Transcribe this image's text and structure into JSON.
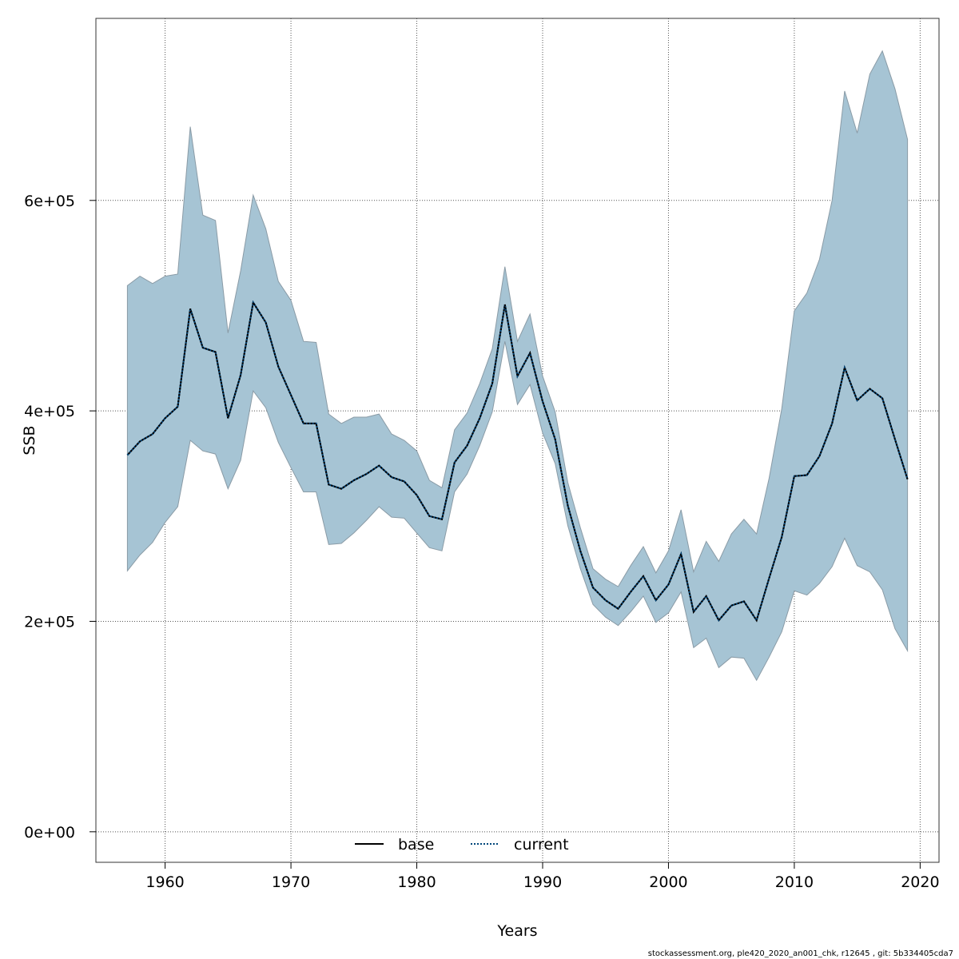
{
  "chart_data": {
    "type": "area",
    "title": "",
    "xlabel": "Years",
    "ylabel": "SSB",
    "xlim": [
      1954.5,
      2021.5
    ],
    "ylim": [
      -29000,
      773000
    ],
    "x_ticks": [
      {
        "value": 1960,
        "label": "1960"
      },
      {
        "value": 1970,
        "label": "1970"
      },
      {
        "value": 1980,
        "label": "1980"
      },
      {
        "value": 1990,
        "label": "1990"
      },
      {
        "value": 2000,
        "label": "2000"
      },
      {
        "value": 2010,
        "label": "2010"
      },
      {
        "value": 2020,
        "label": "2020"
      }
    ],
    "y_ticks": [
      {
        "value": 0,
        "label": "0e+00"
      },
      {
        "value": 200000,
        "label": "2e+05"
      },
      {
        "value": 400000,
        "label": "4e+05"
      },
      {
        "value": 600000,
        "label": "6e+05"
      }
    ],
    "grid": true,
    "legend_position": "bottom",
    "colors": {
      "band_fill": "#a6c4d4",
      "band_stroke": "#8a9ba6",
      "current_line": "#00467a",
      "base_line": "#000000",
      "grid": "#555555"
    },
    "legend": [
      {
        "name": "base",
        "style": "solid",
        "color": "#000000"
      },
      {
        "name": "current",
        "style": "dotted",
        "color": "#00467a"
      }
    ],
    "x": [
      1957,
      1958,
      1959,
      1960,
      1961,
      1962,
      1963,
      1964,
      1965,
      1966,
      1967,
      1968,
      1969,
      1970,
      1971,
      1972,
      1973,
      1974,
      1975,
      1976,
      1977,
      1978,
      1979,
      1980,
      1981,
      1982,
      1983,
      1984,
      1985,
      1986,
      1987,
      1988,
      1989,
      1990,
      1991,
      1992,
      1993,
      1994,
      1995,
      1996,
      1997,
      1998,
      1999,
      2000,
      2001,
      2002,
      2003,
      2004,
      2005,
      2006,
      2007,
      2008,
      2009,
      2010,
      2011,
      2012,
      2013,
      2014,
      2015,
      2016,
      2017,
      2018,
      2019
    ],
    "series": [
      {
        "name": "base",
        "values": [
          358000,
          371000,
          378000,
          393000,
          404000,
          497000,
          460000,
          456000,
          393000,
          434000,
          503000,
          484000,
          442000,
          415000,
          388000,
          388000,
          330000,
          326000,
          334000,
          340000,
          348000,
          337000,
          333000,
          320000,
          300000,
          297000,
          351000,
          367000,
          393000,
          426000,
          501000,
          433000,
          455000,
          409000,
          373000,
          310000,
          267000,
          232000,
          220000,
          212000,
          228000,
          243000,
          220000,
          235000,
          264000,
          209000,
          224000,
          201000,
          215000,
          219000,
          201000,
          241000,
          280000,
          338000,
          339000,
          357000,
          388000,
          441000,
          410000,
          421000,
          412000,
          373000,
          335000
        ]
      },
      {
        "name": "current",
        "values": [
          358000,
          371000,
          378000,
          393000,
          404000,
          497000,
          460000,
          456000,
          393000,
          434000,
          503000,
          484000,
          442000,
          415000,
          388000,
          388000,
          330000,
          326000,
          334000,
          340000,
          348000,
          337000,
          333000,
          320000,
          300000,
          297000,
          351000,
          367000,
          393000,
          426000,
          501000,
          433000,
          455000,
          409000,
          373000,
          310000,
          267000,
          232000,
          220000,
          212000,
          228000,
          243000,
          220000,
          235000,
          264000,
          209000,
          224000,
          201000,
          215000,
          219000,
          201000,
          241000,
          280000,
          338000,
          339000,
          357000,
          388000,
          441000,
          410000,
          421000,
          412000,
          373000,
          335000
        ]
      }
    ],
    "band": {
      "upper": [
        519000,
        528000,
        521000,
        528000,
        530000,
        670000,
        586000,
        581000,
        474000,
        533000,
        605000,
        573000,
        523000,
        505000,
        466000,
        465000,
        397000,
        388000,
        394000,
        394000,
        397000,
        378000,
        372000,
        362000,
        334000,
        327000,
        382000,
        398000,
        426000,
        459000,
        537000,
        466000,
        492000,
        433000,
        399000,
        332000,
        289000,
        250000,
        240000,
        233000,
        253000,
        271000,
        246000,
        267000,
        306000,
        247000,
        276000,
        257000,
        283000,
        297000,
        283000,
        336000,
        402000,
        495000,
        512000,
        544000,
        600000,
        704000,
        664000,
        720000,
        742000,
        706000,
        658000
      ],
      "lower": [
        248000,
        263000,
        275000,
        294000,
        309000,
        372000,
        362000,
        359000,
        326000,
        353000,
        419000,
        403000,
        370000,
        346000,
        323000,
        323000,
        273000,
        274000,
        284000,
        296000,
        309000,
        299000,
        298000,
        284000,
        270000,
        267000,
        323000,
        340000,
        367000,
        399000,
        466000,
        406000,
        425000,
        379000,
        350000,
        291000,
        250000,
        216000,
        204000,
        196000,
        209000,
        224000,
        199000,
        208000,
        228000,
        175000,
        184000,
        156000,
        166000,
        165000,
        144000,
        166000,
        190000,
        229000,
        225000,
        236000,
        252000,
        279000,
        253000,
        247000,
        230000,
        193000,
        172000
      ]
    }
  },
  "footer": {
    "text": "stockassessment.org, ple420_2020_an001_chk, r12645 , git: 5b334405cda7"
  }
}
